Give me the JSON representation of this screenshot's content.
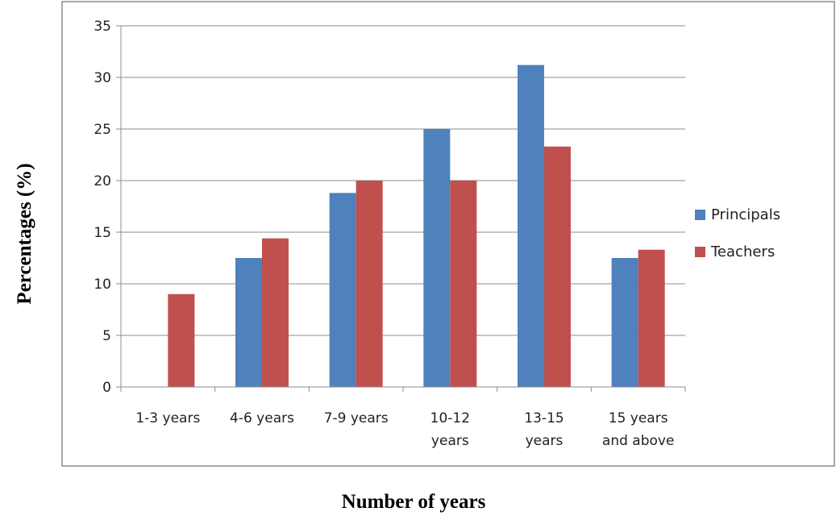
{
  "chart_data": {
    "type": "bar",
    "title": "",
    "xlabel": "Number of years",
    "ylabel": "Percentages (%)",
    "ylim": [
      0,
      35
    ],
    "yticks": [
      0,
      5,
      10,
      15,
      20,
      25,
      30,
      35
    ],
    "grid": true,
    "legend_position": "right",
    "categories": [
      [
        "1-3 years"
      ],
      [
        "4-6 years"
      ],
      [
        "7-9 years"
      ],
      [
        "10-12",
        "years"
      ],
      [
        "13-15",
        "years"
      ],
      [
        "15 years",
        "and above"
      ]
    ],
    "series": [
      {
        "name": "Principals",
        "color": "#4F81BD",
        "values": [
          0,
          12.5,
          18.8,
          25,
          31.2,
          12.5
        ]
      },
      {
        "name": "Teachers",
        "color": "#C0504D",
        "values": [
          9,
          14.4,
          20,
          20,
          23.3,
          13.3
        ]
      }
    ]
  }
}
